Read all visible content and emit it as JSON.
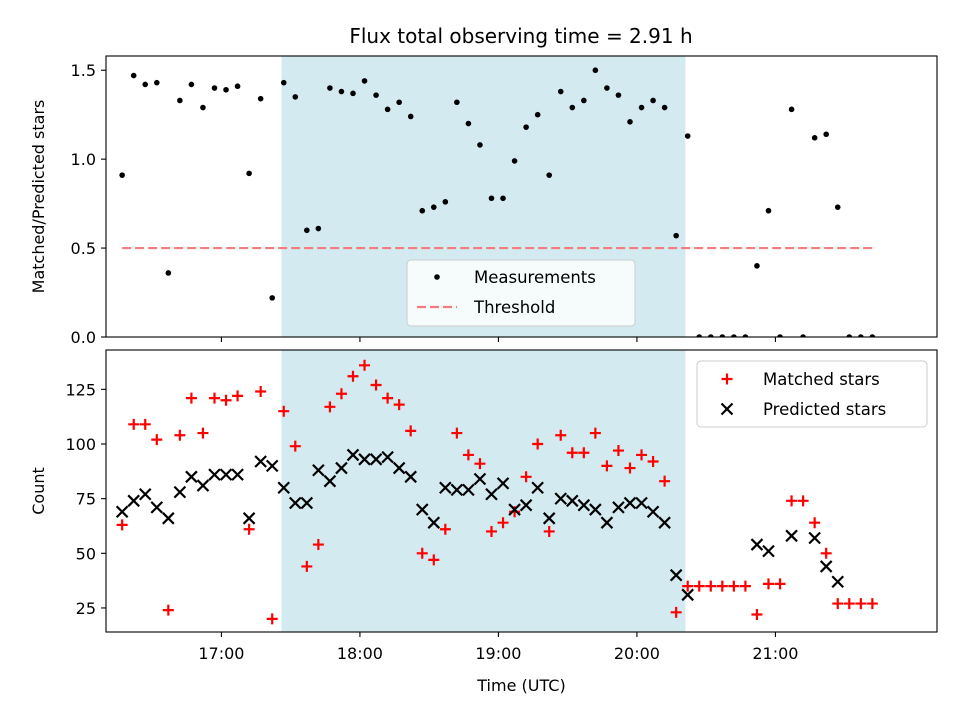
{
  "title": "Flux total observing time = 2.91 h",
  "chart_data": [
    {
      "type": "scatter",
      "ylabel": "Matched/Predicted stars",
      "ylim": [
        0,
        1.58
      ],
      "xlim": [
        "16:10",
        "22:10"
      ],
      "yticks": [
        0.0,
        0.5,
        1.0,
        1.5
      ],
      "ytick_labels": [
        "0.0",
        "0.5",
        "1.0",
        "1.5"
      ],
      "legend_placement": "lower-center",
      "span": {
        "start": "17:26",
        "end": "20:21",
        "color": "#d3eaf1"
      },
      "threshold": {
        "name": "Threshold",
        "value": 0.5,
        "x_start": "16:17",
        "x_end": "21:42",
        "color": "#f47c7c"
      },
      "series": [
        {
          "name": "Measurements",
          "color": "#000000",
          "points": [
            [
              "16:17",
              0.91
            ],
            [
              "16:22",
              1.47
            ],
            [
              "16:27",
              1.42
            ],
            [
              "16:32",
              1.43
            ],
            [
              "16:37",
              0.36
            ],
            [
              "16:42",
              1.33
            ],
            [
              "16:47",
              1.42
            ],
            [
              "16:52",
              1.29
            ],
            [
              "16:57",
              1.4
            ],
            [
              "17:02",
              1.39
            ],
            [
              "17:07",
              1.41
            ],
            [
              "17:12",
              0.92
            ],
            [
              "17:17",
              1.34
            ],
            [
              "17:22",
              0.22
            ],
            [
              "17:27",
              1.43
            ],
            [
              "17:32",
              1.35
            ],
            [
              "17:37",
              0.6
            ],
            [
              "17:42",
              0.61
            ],
            [
              "17:47",
              1.4
            ],
            [
              "17:52",
              1.38
            ],
            [
              "17:57",
              1.37
            ],
            [
              "18:02",
              1.44
            ],
            [
              "18:07",
              1.36
            ],
            [
              "18:12",
              1.28
            ],
            [
              "18:17",
              1.32
            ],
            [
              "18:22",
              1.24
            ],
            [
              "18:27",
              0.71
            ],
            [
              "18:32",
              0.73
            ],
            [
              "18:37",
              0.76
            ],
            [
              "18:42",
              1.32
            ],
            [
              "18:47",
              1.2
            ],
            [
              "18:52",
              1.08
            ],
            [
              "18:57",
              0.78
            ],
            [
              "19:02",
              0.78
            ],
            [
              "19:07",
              0.99
            ],
            [
              "19:12",
              1.18
            ],
            [
              "19:17",
              1.25
            ],
            [
              "19:22",
              0.91
            ],
            [
              "19:27",
              1.38
            ],
            [
              "19:32",
              1.29
            ],
            [
              "19:37",
              1.33
            ],
            [
              "19:42",
              1.5
            ],
            [
              "19:47",
              1.4
            ],
            [
              "19:52",
              1.36
            ],
            [
              "19:57",
              1.21
            ],
            [
              "20:02",
              1.29
            ],
            [
              "20:07",
              1.33
            ],
            [
              "20:12",
              1.29
            ],
            [
              "20:17",
              0.57
            ],
            [
              "20:22",
              1.13
            ],
            [
              "20:27",
              0.0
            ],
            [
              "20:32",
              0.0
            ],
            [
              "20:37",
              0.0
            ],
            [
              "20:42",
              0.0
            ],
            [
              "20:47",
              0.0
            ],
            [
              "20:52",
              0.4
            ],
            [
              "20:57",
              0.71
            ],
            [
              "21:02",
              0.0
            ],
            [
              "21:07",
              1.28
            ],
            [
              "21:12",
              0.0
            ],
            [
              "21:17",
              1.12
            ],
            [
              "21:22",
              1.14
            ],
            [
              "21:27",
              0.73
            ],
            [
              "21:32",
              0.0
            ],
            [
              "21:37",
              0.0
            ],
            [
              "21:42",
              0.0
            ]
          ]
        }
      ]
    },
    {
      "type": "scatter",
      "xlabel": "Time (UTC)",
      "ylabel": "Count",
      "ylim": [
        14,
        143
      ],
      "xlim": [
        "16:10",
        "22:10"
      ],
      "yticks": [
        25,
        50,
        75,
        100,
        125
      ],
      "ytick_labels": [
        "25",
        "50",
        "75",
        "100",
        "125"
      ],
      "xticks": [
        "17:00",
        "18:00",
        "19:00",
        "20:00",
        "21:00"
      ],
      "xtick_labels": [
        "17:00",
        "18:00",
        "19:00",
        "20:00",
        "21:00"
      ],
      "legend_placement": "upper-right",
      "span": {
        "start": "17:26",
        "end": "20:21",
        "color": "#d3eaf1"
      },
      "series": [
        {
          "name": "Matched stars",
          "marker": "plus",
          "color": "#ff0000",
          "points": [
            [
              "16:17",
              63
            ],
            [
              "16:22",
              109
            ],
            [
              "16:27",
              109
            ],
            [
              "16:32",
              102
            ],
            [
              "16:37",
              24
            ],
            [
              "16:42",
              104
            ],
            [
              "16:47",
              121
            ],
            [
              "16:52",
              105
            ],
            [
              "16:57",
              121
            ],
            [
              "17:02",
              120
            ],
            [
              "17:07",
              122
            ],
            [
              "17:12",
              61
            ],
            [
              "17:17",
              124
            ],
            [
              "17:22",
              20
            ],
            [
              "17:27",
              115
            ],
            [
              "17:32",
              99
            ],
            [
              "17:37",
              44
            ],
            [
              "17:42",
              54
            ],
            [
              "17:47",
              117
            ],
            [
              "17:52",
              123
            ],
            [
              "17:57",
              131
            ],
            [
              "18:02",
              136
            ],
            [
              "18:07",
              127
            ],
            [
              "18:12",
              121
            ],
            [
              "18:17",
              118
            ],
            [
              "18:22",
              106
            ],
            [
              "18:27",
              50
            ],
            [
              "18:32",
              47
            ],
            [
              "18:37",
              61
            ],
            [
              "18:42",
              105
            ],
            [
              "18:47",
              95
            ],
            [
              "18:52",
              91
            ],
            [
              "18:57",
              60
            ],
            [
              "19:02",
              64
            ],
            [
              "19:07",
              69
            ],
            [
              "19:12",
              85
            ],
            [
              "19:17",
              100
            ],
            [
              "19:22",
              60
            ],
            [
              "19:27",
              104
            ],
            [
              "19:32",
              96
            ],
            [
              "19:37",
              96
            ],
            [
              "19:42",
              105
            ],
            [
              "19:47",
              90
            ],
            [
              "19:52",
              97
            ],
            [
              "19:57",
              89
            ],
            [
              "20:02",
              95
            ],
            [
              "20:07",
              92
            ],
            [
              "20:12",
              83
            ],
            [
              "20:17",
              23
            ],
            [
              "20:22",
              35
            ],
            [
              "20:27",
              35
            ],
            [
              "20:32",
              35
            ],
            [
              "20:37",
              35
            ],
            [
              "20:42",
              35
            ],
            [
              "20:47",
              35
            ],
            [
              "20:52",
              22
            ],
            [
              "20:57",
              36
            ],
            [
              "21:02",
              36
            ],
            [
              "21:07",
              74
            ],
            [
              "21:12",
              74
            ],
            [
              "21:17",
              64
            ],
            [
              "21:22",
              50
            ],
            [
              "21:27",
              27
            ],
            [
              "21:32",
              27
            ],
            [
              "21:37",
              27
            ],
            [
              "21:42",
              27
            ]
          ]
        },
        {
          "name": "Predicted stars",
          "marker": "x",
          "color": "#000000",
          "points": [
            [
              "16:17",
              69
            ],
            [
              "16:22",
              74
            ],
            [
              "16:27",
              77
            ],
            [
              "16:32",
              71
            ],
            [
              "16:37",
              66
            ],
            [
              "16:42",
              78
            ],
            [
              "16:47",
              85
            ],
            [
              "16:52",
              81
            ],
            [
              "16:57",
              86
            ],
            [
              "17:02",
              86
            ],
            [
              "17:07",
              86
            ],
            [
              "17:12",
              66
            ],
            [
              "17:17",
              92
            ],
            [
              "17:22",
              90
            ],
            [
              "17:27",
              80
            ],
            [
              "17:32",
              73
            ],
            [
              "17:37",
              73
            ],
            [
              "17:42",
              88
            ],
            [
              "17:47",
              83
            ],
            [
              "17:52",
              89
            ],
            [
              "17:57",
              95
            ],
            [
              "18:02",
              93
            ],
            [
              "18:07",
              93
            ],
            [
              "18:12",
              94
            ],
            [
              "18:17",
              89
            ],
            [
              "18:22",
              85
            ],
            [
              "18:27",
              70
            ],
            [
              "18:32",
              64
            ],
            [
              "18:37",
              80
            ],
            [
              "18:42",
              79
            ],
            [
              "18:47",
              79
            ],
            [
              "18:52",
              84
            ],
            [
              "18:57",
              77
            ],
            [
              "19:02",
              82
            ],
            [
              "19:07",
              70
            ],
            [
              "19:12",
              72
            ],
            [
              "19:17",
              80
            ],
            [
              "19:22",
              66
            ],
            [
              "19:27",
              75
            ],
            [
              "19:32",
              74
            ],
            [
              "19:37",
              72
            ],
            [
              "19:42",
              70
            ],
            [
              "19:47",
              64
            ],
            [
              "19:52",
              71
            ],
            [
              "19:57",
              73
            ],
            [
              "20:02",
              73
            ],
            [
              "20:07",
              69
            ],
            [
              "20:12",
              64
            ],
            [
              "20:17",
              40
            ],
            [
              "20:22",
              31
            ],
            [
              "20:52",
              54
            ],
            [
              "20:57",
              51
            ],
            [
              "21:07",
              58
            ],
            [
              "21:17",
              57
            ],
            [
              "21:22",
              44
            ],
            [
              "21:27",
              37
            ]
          ]
        }
      ]
    }
  ]
}
